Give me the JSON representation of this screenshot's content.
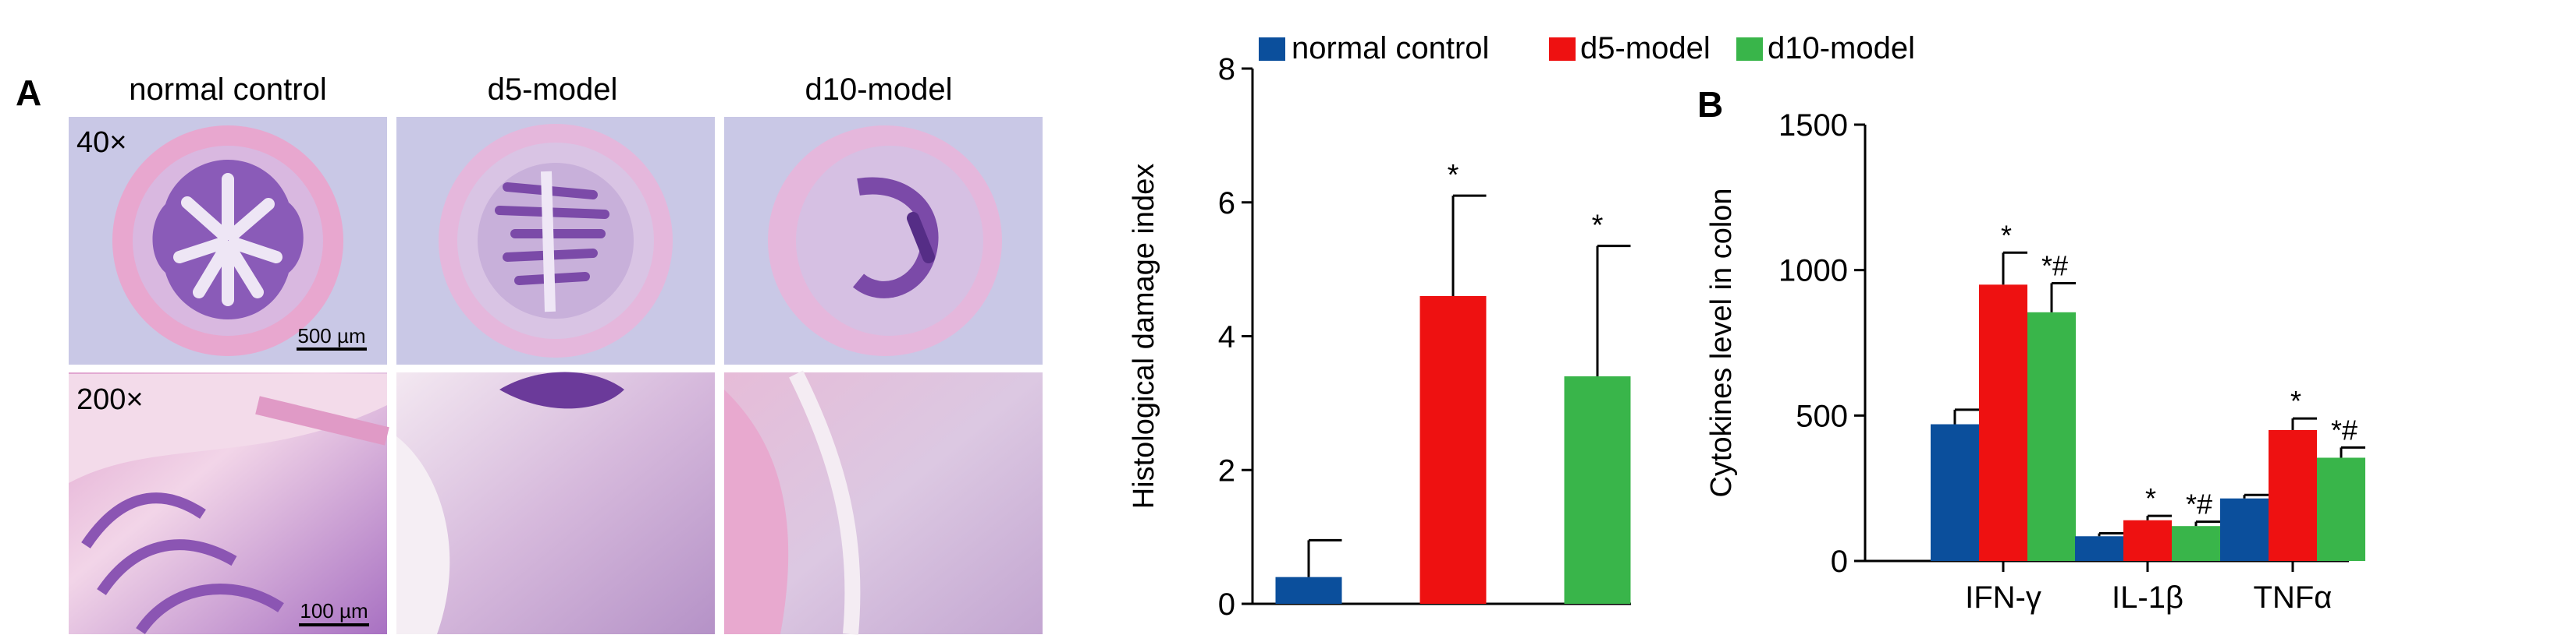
{
  "panel_a": {
    "label": "A",
    "column_titles": [
      "normal control",
      "d5-model",
      "d10-model"
    ],
    "row_labels": [
      "40×",
      "200×"
    ],
    "scale_bars": [
      "500 µm",
      "100 µm"
    ]
  },
  "panel_b": {
    "label": "B"
  },
  "legend": {
    "entries": [
      {
        "name": "normal control",
        "color": "#0b4f9c"
      },
      {
        "name": "d5-model",
        "color": "#ee1111"
      },
      {
        "name": "d10-model",
        "color": "#39b54a"
      }
    ]
  },
  "colors": {
    "normal_control": "#0b4f9c",
    "d5_model": "#ee1111",
    "d10_model": "#39b54a",
    "tissue_low_mag_background": "#c9c8e6",
    "tissue_stain_pink": "#e8a7cf",
    "tissue_stain_purple": "#8a5bb8"
  },
  "chart_data": [
    {
      "type": "bar",
      "title": "",
      "xlabel": "",
      "ylabel": "Histological damage index",
      "ylim": [
        0,
        8
      ],
      "yticks": [
        0,
        2,
        4,
        6,
        8
      ],
      "grid": false,
      "categories": [
        "normal control",
        "d5-model",
        "d10-model"
      ],
      "values": [
        0.4,
        4.6,
        3.4
      ],
      "errors": [
        0.55,
        1.5,
        1.95
      ],
      "annotations": [
        "",
        "*",
        "*"
      ]
    },
    {
      "type": "bar",
      "title": "",
      "xlabel": "",
      "ylabel": "Cytokines level in colon",
      "ylim": [
        0,
        1500
      ],
      "yticks": [
        0,
        500,
        1000,
        1500
      ],
      "grid": false,
      "categories": [
        "IFN-γ",
        "IL-1β",
        "TNFα"
      ],
      "series": [
        {
          "name": "normal control",
          "values": [
            470,
            85,
            215
          ],
          "errors": [
            50,
            10,
            12
          ],
          "annotations": [
            "",
            "",
            ""
          ]
        },
        {
          "name": "d5-model",
          "values": [
            950,
            140,
            450
          ],
          "errors": [
            110,
            15,
            40
          ],
          "annotations": [
            "*",
            "*",
            "*"
          ]
        },
        {
          "name": "d10-model",
          "values": [
            855,
            120,
            355
          ],
          "errors": [
            100,
            15,
            35
          ],
          "annotations": [
            "*#",
            "*#",
            "*#"
          ]
        }
      ]
    }
  ]
}
